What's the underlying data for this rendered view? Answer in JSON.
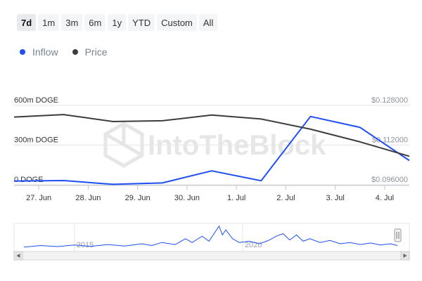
{
  "range_buttons": [
    {
      "label": "7d",
      "active": true
    },
    {
      "label": "1m",
      "active": false
    },
    {
      "label": "3m",
      "active": false
    },
    {
      "label": "6m",
      "active": false
    },
    {
      "label": "1y",
      "active": false
    },
    {
      "label": "YTD",
      "active": false
    },
    {
      "label": "Custom",
      "active": false
    },
    {
      "label": "All",
      "active": false
    }
  ],
  "legend": [
    {
      "label": "Inflow",
      "color": "#1f4ef5"
    },
    {
      "label": "Price",
      "color": "#3d3d3d"
    }
  ],
  "watermark": "IntoTheBlock",
  "chart_data": {
    "type": "line",
    "x": [
      "27. Jun",
      "28. Jun",
      "29. Jun",
      "30. Jun",
      "1. Jul",
      "2. Jul",
      "3. Jul",
      "4. Jul"
    ],
    "x_values": [
      0,
      1,
      2,
      3,
      4,
      5,
      6,
      7,
      8
    ],
    "series": [
      {
        "name": "Inflow",
        "axis": "left",
        "color": "#1f4ef5",
        "values": [
          28,
          32,
          3,
          14,
          105,
          30,
          516,
          434,
          183
        ]
      },
      {
        "name": "Price",
        "axis": "right",
        "color": "#3d3d3d",
        "values": [
          0.1233,
          0.1243,
          0.1215,
          0.1218,
          0.1241,
          0.1225,
          0.1184,
          0.1133,
          0.1075
        ]
      }
    ],
    "y_left": {
      "ticks": [
        {
          "value": 0,
          "label": "0 DOGE"
        },
        {
          "value": 300,
          "label": "300m DOGE"
        },
        {
          "value": 600,
          "label": "600m DOGE"
        }
      ],
      "range": [
        0,
        600
      ]
    },
    "y_right": {
      "ticks": [
        {
          "value": 0.096,
          "label": "$0.096000"
        },
        {
          "value": 0.112,
          "label": "$0.112000"
        },
        {
          "value": 0.128,
          "label": "$0.128000"
        }
      ],
      "range": [
        0.096,
        0.128
      ]
    },
    "navigator": {
      "years": [
        "2015",
        "2020"
      ],
      "x_range": [
        2013.5,
        2024.6
      ],
      "points": [
        [
          2013.5,
          0.12
        ],
        [
          2014.0,
          0.18
        ],
        [
          2014.5,
          0.14
        ],
        [
          2015.0,
          0.2
        ],
        [
          2015.5,
          0.15
        ],
        [
          2016.0,
          0.22
        ],
        [
          2016.5,
          0.16
        ],
        [
          2017.0,
          0.25
        ],
        [
          2017.3,
          0.18
        ],
        [
          2017.6,
          0.3
        ],
        [
          2018.0,
          0.22
        ],
        [
          2018.3,
          0.45
        ],
        [
          2018.5,
          0.3
        ],
        [
          2018.8,
          0.55
        ],
        [
          2019.0,
          0.35
        ],
        [
          2019.2,
          0.75
        ],
        [
          2019.3,
          0.95
        ],
        [
          2019.4,
          0.6
        ],
        [
          2019.5,
          0.8
        ],
        [
          2019.7,
          0.45
        ],
        [
          2019.9,
          0.3
        ],
        [
          2020.2,
          0.35
        ],
        [
          2020.5,
          0.25
        ],
        [
          2020.8,
          0.4
        ],
        [
          2021.0,
          0.55
        ],
        [
          2021.2,
          0.65
        ],
        [
          2021.4,
          0.4
        ],
        [
          2021.6,
          0.6
        ],
        [
          2021.8,
          0.35
        ],
        [
          2022.0,
          0.45
        ],
        [
          2022.3,
          0.3
        ],
        [
          2022.6,
          0.38
        ],
        [
          2022.9,
          0.25
        ],
        [
          2023.2,
          0.3
        ],
        [
          2023.5,
          0.22
        ],
        [
          2023.8,
          0.28
        ],
        [
          2024.1,
          0.2
        ],
        [
          2024.4,
          0.25
        ],
        [
          2024.6,
          0.18
        ]
      ]
    }
  }
}
